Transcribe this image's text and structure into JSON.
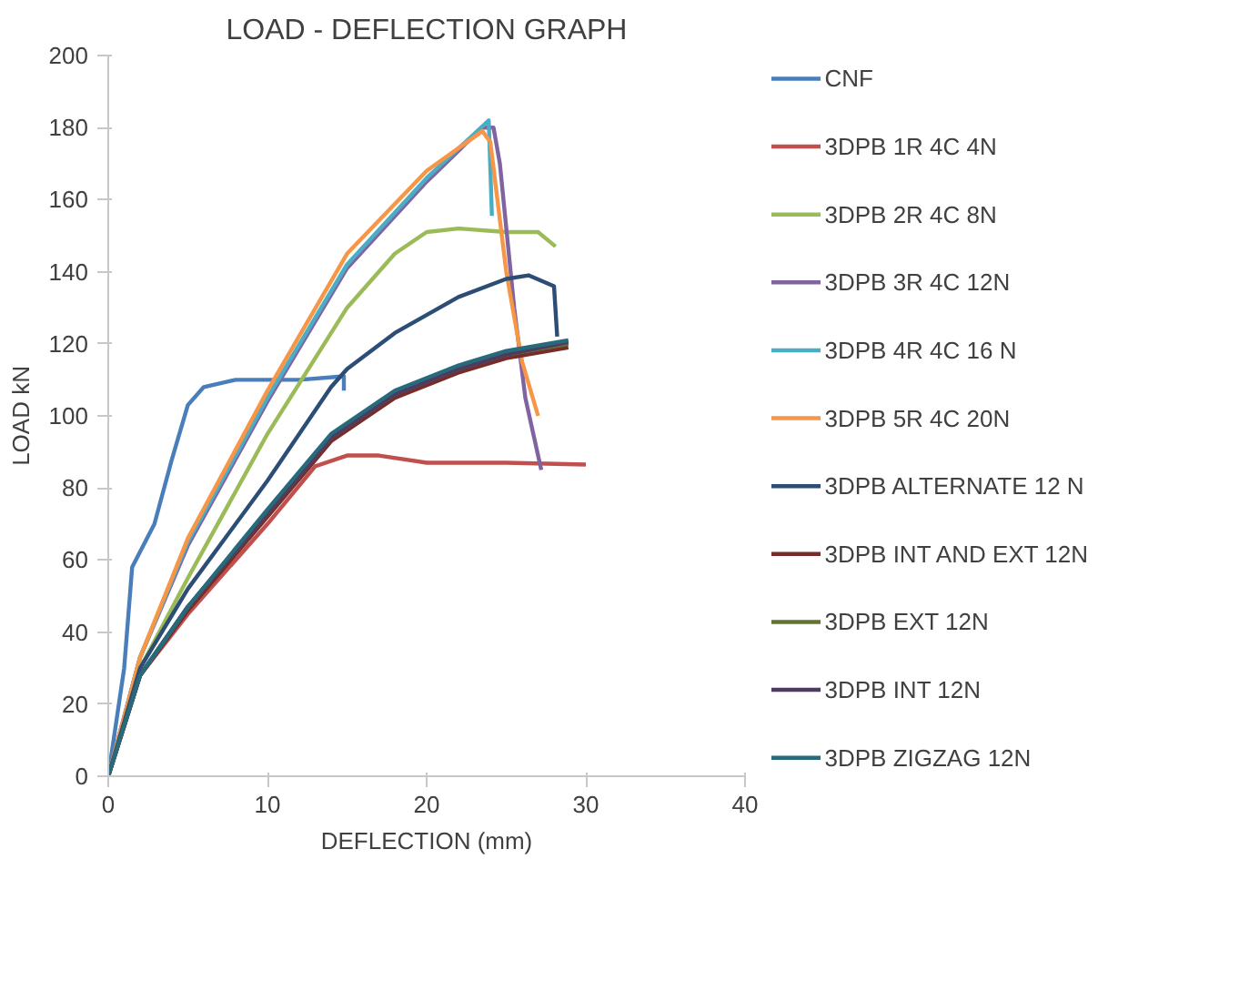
{
  "chart_data": {
    "type": "line",
    "title": "LOAD - DEFLECTION GRAPH",
    "xlabel": "DEFLECTION (mm)",
    "ylabel": "LOAD kN",
    "xlim": [
      0,
      40
    ],
    "ylim": [
      0,
      200
    ],
    "xticks": [
      0,
      10,
      20,
      30,
      40
    ],
    "yticks": [
      0,
      20,
      40,
      60,
      80,
      100,
      120,
      140,
      160,
      180,
      200
    ],
    "grid": false,
    "legend": "right",
    "marker": "none",
    "line_style": "solid",
    "series": [
      {
        "name": "CNF",
        "color": "#4a7ebb",
        "x": [
          0,
          1,
          1.5,
          2.9,
          4,
          5,
          6,
          8,
          10,
          12,
          14.8,
          14.8
        ],
        "values": [
          0,
          30,
          58,
          70,
          88,
          103,
          108,
          110,
          110,
          110,
          111,
          107
        ]
      },
      {
        "name": "3DPB 1R 4C 4N",
        "color": "#c0504d",
        "x": [
          0,
          2,
          5,
          10,
          13,
          15,
          17,
          20,
          25,
          30
        ],
        "values": [
          0,
          28,
          45,
          70,
          86,
          89,
          89,
          87,
          87,
          86.5
        ]
      },
      {
        "name": "3DPB 2R 4C 8N",
        "color": "#9bbb59",
        "x": [
          0,
          2,
          5,
          10,
          15,
          18,
          20,
          22,
          25,
          27,
          28.1
        ],
        "values": [
          0,
          30,
          55,
          95,
          130,
          145,
          151,
          152,
          151,
          151,
          147
        ]
      },
      {
        "name": "3DPB 3R 4C 12N",
        "color": "#8064a2",
        "x": [
          0,
          2,
          5,
          10,
          15,
          20,
          23.5,
          24.2,
          24.6,
          25.5,
          26.2,
          27.2
        ],
        "values": [
          0,
          33,
          64,
          104,
          141,
          165,
          180,
          180,
          170,
          130,
          105,
          85
        ]
      },
      {
        "name": "3DPB 4R 4C 16 N",
        "color": "#4bacc6",
        "x": [
          0,
          2,
          5,
          10,
          15,
          20,
          23.9,
          24.1
        ],
        "values": [
          0,
          33,
          65,
          105,
          142,
          166,
          182,
          155.5
        ]
      },
      {
        "name": "3DPB 5R 4C 20N",
        "color": "#f79646",
        "x": [
          0,
          2,
          5,
          10,
          15,
          20,
          23.5,
          24,
          25,
          26,
          27
        ],
        "values": [
          0,
          33,
          66,
          107,
          145,
          168,
          179,
          176,
          140,
          115,
          100
        ]
      },
      {
        "name": "3DPB ALTERNATE 12 N",
        "color": "#2c4d75",
        "x": [
          0,
          2,
          5,
          10,
          14,
          15,
          18,
          22,
          25,
          26.4,
          28,
          28.2
        ],
        "values": [
          0,
          30,
          52,
          82,
          108,
          113,
          123,
          133,
          138,
          139,
          136,
          122
        ]
      },
      {
        "name": "3DPB INT AND EXT 12N",
        "color": "#772c2a",
        "x": [
          0,
          2,
          5,
          10,
          14,
          18,
          22,
          25,
          28.9
        ],
        "values": [
          0,
          28,
          46,
          72,
          93,
          105,
          112,
          116,
          119
        ]
      },
      {
        "name": "3DPB EXT 12N",
        "color": "#5f7530",
        "x": [
          0,
          2,
          5,
          10,
          14,
          18,
          22,
          25,
          28.9
        ],
        "values": [
          0,
          28,
          47,
          73,
          94,
          106,
          113,
          117,
          120
        ]
      },
      {
        "name": "3DPB INT 12N",
        "color": "#4d3b62",
        "x": [
          0,
          2,
          5,
          10,
          14,
          18,
          22,
          25,
          28.9
        ],
        "values": [
          0,
          28,
          47,
          73,
          94,
          106,
          113,
          117,
          120.5
        ]
      },
      {
        "name": "3DPB ZIGZAG 12N",
        "color": "#276a7c",
        "x": [
          0,
          2,
          5,
          10,
          14,
          18,
          22,
          25,
          28.9
        ],
        "values": [
          0,
          28,
          47,
          74,
          95,
          107,
          114,
          118,
          121
        ]
      }
    ]
  }
}
